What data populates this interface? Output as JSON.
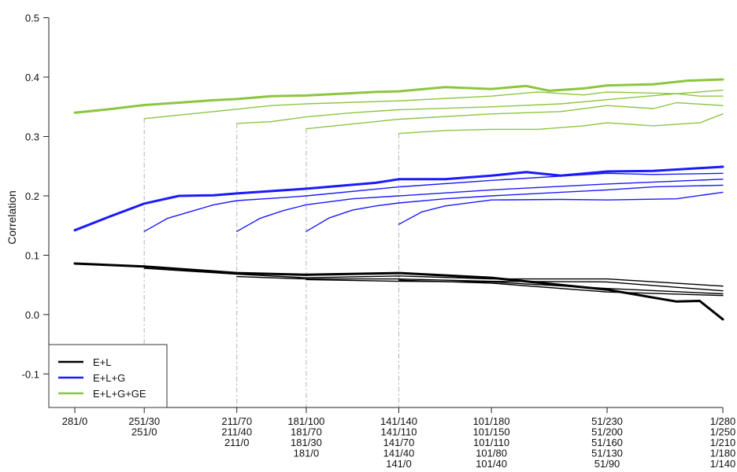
{
  "chart_data": {
    "type": "line",
    "ylabel": "Correlation",
    "ylim": [
      -0.13,
      0.51
    ],
    "yticks": [
      -0.1,
      0.0,
      0.1,
      0.2,
      0.3,
      0.4,
      0.5
    ],
    "ytick_labels": [
      "-0.1",
      "0.0",
      "0.1",
      "0.2",
      "0.3",
      "0.4",
      "0.5"
    ],
    "xlim": [
      281,
      1
    ],
    "x_tick_groups": [
      {
        "x": 281,
        "labels": [
          "281/0"
        ]
      },
      {
        "x": 251,
        "labels": [
          "251/30",
          "251/0"
        ]
      },
      {
        "x": 211,
        "labels": [
          "211/70",
          "211/40",
          "211/0"
        ]
      },
      {
        "x": 181,
        "labels": [
          "181/100",
          "181/70",
          "181/30",
          "181/0"
        ]
      },
      {
        "x": 141,
        "labels": [
          "141/140",
          "141/110",
          "141/70",
          "141/40",
          "141/0"
        ]
      },
      {
        "x": 101,
        "labels": [
          "101/180",
          "101/150",
          "101/110",
          "101/80",
          "101/40"
        ]
      },
      {
        "x": 51,
        "labels": [
          "51/230",
          "51/200",
          "51/160",
          "51/130",
          "51/90"
        ]
      },
      {
        "x": 1,
        "labels": [
          "1/280",
          "1/250",
          "1/210",
          "1/180",
          "1/140"
        ]
      }
    ],
    "start_markers": [
      251,
      211,
      181,
      141
    ],
    "legend": {
      "position": "bottom-left",
      "entries": [
        {
          "label": "E+L",
          "color": "#000000"
        },
        {
          "label": "E+L+G",
          "color": "#1a1aff"
        },
        {
          "label": "E+L+G+GE",
          "color": "#8cc63f"
        }
      ]
    },
    "series": [
      {
        "group": "E+L",
        "color": "#000000",
        "bold": true,
        "x": [
          281,
          251,
          211,
          181,
          141,
          101,
          71,
          51,
          21,
          11,
          1
        ],
        "y": [
          0.086,
          0.081,
          0.07,
          0.067,
          0.07,
          0.062,
          0.05,
          0.042,
          0.022,
          0.023,
          -0.008
        ]
      },
      {
        "group": "E+L",
        "color": "#000000",
        "bold": false,
        "x": [
          251,
          211,
          181,
          141,
          101,
          51,
          1
        ],
        "y": [
          0.078,
          0.068,
          0.062,
          0.065,
          0.06,
          0.06,
          0.048
        ]
      },
      {
        "group": "E+L",
        "color": "#000000",
        "bold": false,
        "x": [
          211,
          181,
          141,
          101,
          51,
          1
        ],
        "y": [
          0.064,
          0.06,
          0.06,
          0.056,
          0.055,
          0.04
        ]
      },
      {
        "group": "E+L",
        "color": "#000000",
        "bold": false,
        "x": [
          181,
          141,
          101,
          51,
          1
        ],
        "y": [
          0.059,
          0.056,
          0.055,
          0.044,
          0.035
        ]
      },
      {
        "group": "E+L",
        "color": "#000000",
        "bold": false,
        "x": [
          141,
          101,
          51,
          1
        ],
        "y": [
          0.058,
          0.053,
          0.038,
          0.032
        ]
      },
      {
        "group": "E+L+G",
        "color": "#1a1aff",
        "bold": true,
        "x": [
          281,
          266,
          251,
          236,
          221,
          211,
          196,
          181,
          166,
          151,
          141,
          121,
          101,
          86,
          71,
          51,
          31,
          1
        ],
        "y": [
          0.142,
          0.165,
          0.187,
          0.2,
          0.201,
          0.204,
          0.208,
          0.212,
          0.217,
          0.222,
          0.228,
          0.228,
          0.234,
          0.24,
          0.234,
          0.241,
          0.242,
          0.249
        ]
      },
      {
        "group": "E+L+G",
        "color": "#1a1aff",
        "bold": false,
        "x": [
          251,
          241,
          221,
          211,
          191,
          181,
          141,
          101,
          51,
          31,
          1
        ],
        "y": [
          0.14,
          0.162,
          0.185,
          0.192,
          0.197,
          0.2,
          0.215,
          0.226,
          0.238,
          0.236,
          0.238
        ]
      },
      {
        "group": "E+L+G",
        "color": "#1a1aff",
        "bold": false,
        "x": [
          211,
          201,
          191,
          181,
          161,
          141,
          101,
          51,
          1
        ],
        "y": [
          0.14,
          0.162,
          0.175,
          0.185,
          0.195,
          0.2,
          0.21,
          0.22,
          0.228
        ]
      },
      {
        "group": "E+L+G",
        "color": "#1a1aff",
        "bold": false,
        "x": [
          181,
          171,
          161,
          151,
          141,
          121,
          101,
          51,
          31,
          1
        ],
        "y": [
          0.14,
          0.163,
          0.176,
          0.183,
          0.188,
          0.195,
          0.2,
          0.21,
          0.215,
          0.218
        ]
      },
      {
        "group": "E+L+G",
        "color": "#1a1aff",
        "bold": false,
        "x": [
          141,
          131,
          121,
          101,
          71,
          51,
          21,
          1
        ],
        "y": [
          0.152,
          0.173,
          0.183,
          0.193,
          0.194,
          0.193,
          0.195,
          0.206
        ]
      },
      {
        "group": "E+L+G+GE",
        "color": "#8cc63f",
        "bold": true,
        "x": [
          281,
          266,
          251,
          236,
          221,
          211,
          196,
          181,
          166,
          151,
          141,
          121,
          101,
          86,
          76,
          61,
          51,
          31,
          16,
          1
        ],
        "y": [
          0.34,
          0.346,
          0.353,
          0.357,
          0.361,
          0.363,
          0.368,
          0.369,
          0.372,
          0.375,
          0.376,
          0.383,
          0.38,
          0.385,
          0.377,
          0.381,
          0.386,
          0.388,
          0.394,
          0.396
        ]
      },
      {
        "group": "E+L+G+GE",
        "color": "#8cc63f",
        "bold": false,
        "x": [
          251,
          221,
          211,
          196,
          181,
          141,
          101,
          81,
          61,
          51,
          21,
          1
        ],
        "y": [
          0.33,
          0.342,
          0.346,
          0.352,
          0.355,
          0.36,
          0.368,
          0.375,
          0.37,
          0.375,
          0.372,
          0.378
        ]
      },
      {
        "group": "E+L+G+GE",
        "color": "#8cc63f",
        "bold": false,
        "x": [
          211,
          196,
          181,
          161,
          141,
          101,
          71,
          51,
          21,
          11,
          1
        ],
        "y": [
          0.322,
          0.325,
          0.333,
          0.34,
          0.345,
          0.35,
          0.355,
          0.362,
          0.372,
          0.368,
          0.368
        ]
      },
      {
        "group": "E+L+G+GE",
        "color": "#8cc63f",
        "bold": false,
        "x": [
          181,
          161,
          141,
          101,
          71,
          51,
          31,
          21,
          1
        ],
        "y": [
          0.313,
          0.321,
          0.329,
          0.338,
          0.342,
          0.352,
          0.347,
          0.357,
          0.352
        ]
      },
      {
        "group": "E+L+G+GE",
        "color": "#8cc63f",
        "bold": false,
        "x": [
          141,
          121,
          101,
          81,
          61,
          51,
          31,
          11,
          1
        ],
        "y": [
          0.305,
          0.31,
          0.312,
          0.312,
          0.318,
          0.323,
          0.318,
          0.323,
          0.338
        ]
      }
    ]
  }
}
